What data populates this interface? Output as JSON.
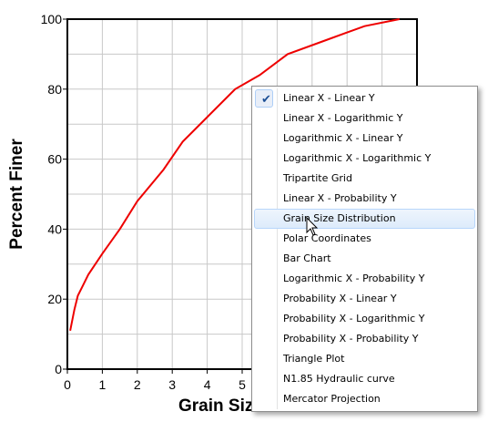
{
  "chart_data": {
    "type": "line",
    "title": "",
    "xlabel": "Grain Siz",
    "ylabel": "Percent Finer",
    "xlim": [
      0,
      10
    ],
    "ylim": [
      0,
      100
    ],
    "x_ticks": [
      "0",
      "1",
      "2",
      "3",
      "4",
      "5"
    ],
    "y_ticks": [
      "0",
      "20",
      "40",
      "60",
      "80",
      "100"
    ],
    "grid": true,
    "series": [
      {
        "color": "#ee0000",
        "points": [
          [
            0.08,
            11
          ],
          [
            0.2,
            17
          ],
          [
            0.3,
            21
          ],
          [
            0.45,
            24
          ],
          [
            0.6,
            27
          ],
          [
            1.0,
            33
          ],
          [
            1.5,
            40
          ],
          [
            2.0,
            48
          ],
          [
            2.75,
            57
          ],
          [
            3.3,
            65
          ],
          [
            4.0,
            72
          ],
          [
            4.8,
            80
          ],
          [
            5.5,
            84
          ],
          [
            6.3,
            90
          ],
          [
            7.4,
            94
          ],
          [
            8.5,
            98
          ],
          [
            9.5,
            100
          ]
        ]
      }
    ]
  },
  "menu": {
    "items": [
      {
        "label": "Linear X - Linear Y",
        "checked": true
      },
      {
        "label": "Linear X - Logarithmic Y"
      },
      {
        "label": "Logarithmic X - Linear Y"
      },
      {
        "label": "Logarithmic X - Logarithmic Y"
      },
      {
        "label": "Tripartite Grid"
      },
      {
        "label": "Linear X - Probability Y"
      },
      {
        "label": "Grain Size Distribution",
        "highlighted": true
      },
      {
        "label": "Polar Coordinates"
      },
      {
        "label": "Bar Chart"
      },
      {
        "label": "Logarithmic X - Probability Y"
      },
      {
        "label": "Probability X - Linear Y"
      },
      {
        "label": "Probability X - Logarithmic Y"
      },
      {
        "label": "Probability X - Probability Y"
      },
      {
        "label": "Triangle Plot"
      },
      {
        "label": "N1.85 Hydraulic curve"
      },
      {
        "label": "Mercator Projection"
      }
    ],
    "check_icon": "checkmark-icon"
  },
  "cursor_icon": "mouse-pointer-icon"
}
